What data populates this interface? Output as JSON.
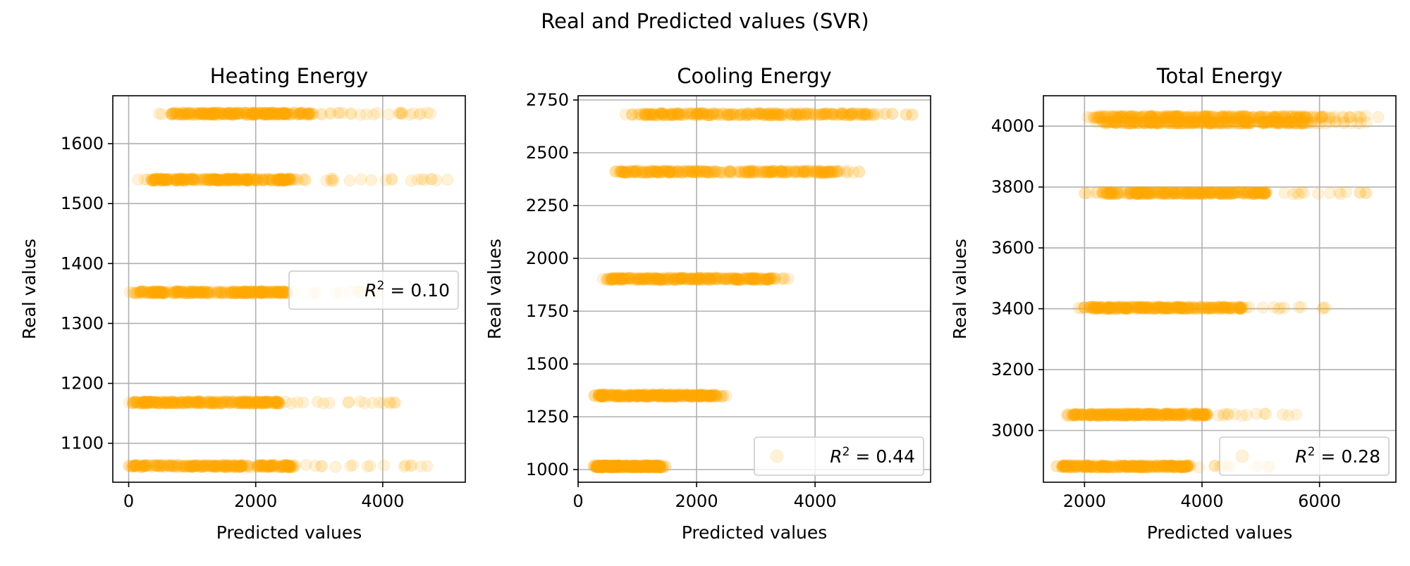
{
  "figure": {
    "suptitle": "Real and Predicted values (SVR)"
  },
  "chart_data": [
    {
      "type": "scatter",
      "title": "Heating Energy",
      "xlabel": "Predicted values",
      "ylabel": "Real values",
      "xlim": [
        -250,
        5300
      ],
      "ylim": [
        1035,
        1680
      ],
      "xticks": [
        0,
        2000,
        4000
      ],
      "xtick_labels": [
        "0",
        "2000",
        "4000"
      ],
      "yticks": [
        1100,
        1200,
        1300,
        1400,
        1500,
        1600
      ],
      "ytick_labels": [
        "1100",
        "1200",
        "1300",
        "1400",
        "1500",
        "1600"
      ],
      "grid": true,
      "legend": {
        "label": "$R^2 = $ 0.10",
        "label_prefix": "R",
        "label_sup": "2",
        "label_suffix": "= 0.10",
        "placement": "center-right",
        "show_marker": false
      },
      "series": [
        {
          "color": "#ffa500",
          "opacity": 0.15,
          "bands": [
            {
              "y": 1650,
              "x_range": [
                480,
                4750
              ],
              "dense_range": [
                650,
                2900
              ]
            },
            {
              "y": 1540,
              "x_range": [
                150,
                5020
              ],
              "dense_range": [
                350,
                2600
              ]
            },
            {
              "y": 1352,
              "x_range": [
                20,
                3950
              ],
              "dense_range": [
                100,
                2500
              ]
            },
            {
              "y": 1168,
              "x_range": [
                10,
                4200
              ],
              "dense_range": [
                60,
                2400
              ]
            },
            {
              "y": 1062,
              "x_range": [
                0,
                4700
              ],
              "dense_range": [
                20,
                2600
              ]
            }
          ]
        }
      ]
    },
    {
      "type": "scatter",
      "title": "Cooling Energy",
      "xlabel": "Predicted values",
      "ylabel": "Real values",
      "xlim": [
        0,
        5950
      ],
      "ylim": [
        940,
        2770
      ],
      "xticks": [
        0,
        2000,
        4000
      ],
      "xtick_labels": [
        "0",
        "2000",
        "4000"
      ],
      "yticks": [
        1000,
        1250,
        1500,
        1750,
        2000,
        2250,
        2500,
        2750
      ],
      "ytick_labels": [
        "1000",
        "1250",
        "1500",
        "1750",
        "2000",
        "2250",
        "2500",
        "2750"
      ],
      "grid": true,
      "legend": {
        "label": "$R^2 = $ 0.44",
        "label_prefix": "R",
        "label_sup": "2",
        "label_suffix": "= 0.44",
        "placement": "lower right",
        "show_marker": true
      },
      "series": [
        {
          "color": "#ffa500",
          "opacity": 0.15,
          "bands": [
            {
              "y": 2682,
              "x_range": [
                800,
                5650
              ],
              "dense_range": [
                900,
                5000
              ]
            },
            {
              "y": 2410,
              "x_range": [
                620,
                4750
              ],
              "dense_range": [
                700,
                4400
              ]
            },
            {
              "y": 1903,
              "x_range": [
                420,
                3550
              ],
              "dense_range": [
                480,
                3350
              ]
            },
            {
              "y": 1350,
              "x_range": [
                270,
                2500
              ],
              "dense_range": [
                330,
                2350
              ]
            },
            {
              "y": 1015,
              "x_range": [
                260,
                1480
              ],
              "dense_range": [
                300,
                1400
              ]
            }
          ]
        }
      ]
    },
    {
      "type": "scatter",
      "title": "Total Energy",
      "xlabel": "Predicted values",
      "ylabel": "Real values",
      "xlim": [
        1300,
        7300
      ],
      "ylim": [
        2830,
        4100
      ],
      "xticks": [
        2000,
        4000,
        6000
      ],
      "xtick_labels": [
        "2000",
        "4000",
        "6000"
      ],
      "yticks": [
        3000,
        3200,
        3400,
        3600,
        3800,
        4000
      ],
      "ytick_labels": [
        "3000",
        "3200",
        "3400",
        "3600",
        "3800",
        "4000"
      ],
      "grid": true,
      "legend": {
        "label": "$R^2 = $ 0.28",
        "label_prefix": "R",
        "label_sup": "2",
        "label_suffix": "= 0.28",
        "placement": "lower right",
        "show_marker": true
      },
      "series": [
        {
          "color": "#ffa500",
          "opacity": 0.15,
          "bands": [
            {
              "y": 4030,
              "x_range": [
                2050,
                7000
              ],
              "dense_range": [
                2150,
                6100
              ]
            },
            {
              "y": 4012,
              "x_range": [
                2200,
                6800
              ],
              "dense_range": [
                2300,
                5800
              ]
            },
            {
              "y": 3780,
              "x_range": [
                2000,
                6800
              ],
              "dense_range": [
                2300,
                5100
              ]
            },
            {
              "y": 3403,
              "x_range": [
                1900,
                6100
              ],
              "dense_range": [
                2100,
                4700
              ]
            },
            {
              "y": 3052,
              "x_range": [
                1700,
                5600
              ],
              "dense_range": [
                1800,
                4100
              ]
            },
            {
              "y": 2882,
              "x_range": [
                1520,
                5150
              ],
              "dense_range": [
                1600,
                3800
              ]
            }
          ]
        }
      ]
    }
  ]
}
